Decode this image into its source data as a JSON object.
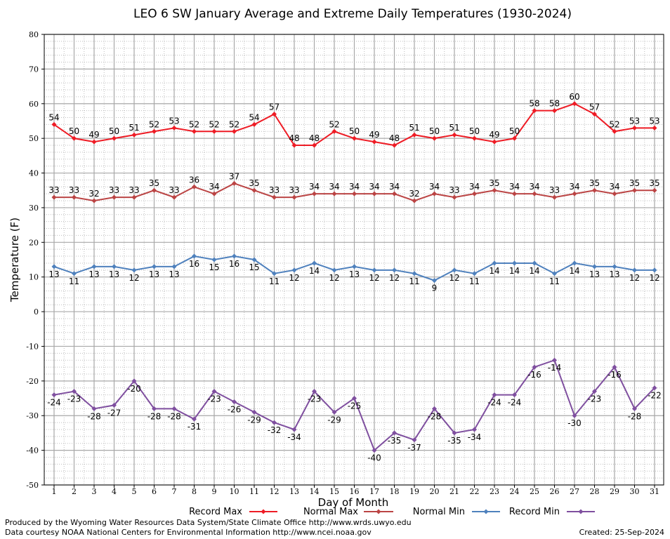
{
  "chart_data": {
    "type": "line",
    "title": "LEO 6 SW January Average and Extreme Daily Temperatures (1930-2024)",
    "xlabel": "Day of Month",
    "ylabel": "Temperature (F)",
    "ylim": [
      -50,
      80
    ],
    "yticks": [
      "80",
      "70",
      "60",
      "50",
      "40",
      "30",
      "20",
      "10",
      "0",
      "-10",
      "-20",
      "-30",
      "-40",
      "-50"
    ],
    "x": [
      "1",
      "2",
      "3",
      "4",
      "5",
      "6",
      "7",
      "8",
      "9",
      "10",
      "11",
      "12",
      "13",
      "14",
      "15",
      "16",
      "17",
      "18",
      "19",
      "20",
      "21",
      "22",
      "23",
      "24",
      "25",
      "26",
      "27",
      "28",
      "29",
      "30",
      "31"
    ],
    "grid": true,
    "legend_position": "bottom",
    "series": [
      {
        "name": "Record Max",
        "color": "#ee1c25",
        "label_position": "above",
        "values": [
          54,
          50,
          49,
          50,
          51,
          52,
          53,
          52,
          52,
          52,
          54,
          57,
          48,
          48,
          52,
          50,
          49,
          48,
          51,
          50,
          51,
          50,
          49,
          50,
          58,
          58,
          60,
          57,
          52,
          53,
          53
        ]
      },
      {
        "name": "Normal Max",
        "color": "#bb4444",
        "label_position": "above",
        "values": [
          33,
          33,
          32,
          33,
          33,
          35,
          33,
          36,
          34,
          37,
          35,
          33,
          33,
          34,
          34,
          34,
          34,
          34,
          32,
          34,
          33,
          34,
          35,
          34,
          34,
          33,
          34,
          35,
          34,
          35,
          35
        ]
      },
      {
        "name": "Normal Min",
        "color": "#4f81bd",
        "label_position": "below",
        "values": [
          13,
          11,
          13,
          13,
          12,
          13,
          13,
          16,
          15,
          16,
          15,
          11,
          12,
          14,
          12,
          13,
          12,
          12,
          11,
          9,
          12,
          11,
          14,
          14,
          14,
          11,
          14,
          13,
          13,
          12,
          12
        ]
      },
      {
        "name": "Record Min",
        "color": "#7f4f9f",
        "label_position": "below",
        "values": [
          -24,
          -23,
          -28,
          -27,
          -20,
          -28,
          -28,
          -31,
          -23,
          -26,
          -29,
          -32,
          -34,
          -23,
          -29,
          -25,
          -40,
          -35,
          -37,
          -28,
          -35,
          -34,
          -24,
          -24,
          -16,
          -14,
          -30,
          -23,
          -16,
          -28,
          -22
        ]
      }
    ]
  },
  "footer": {
    "left_line1": "Produced by the Wyoming Water Resources Data System/State Climate Office http://www.wrds.uwyo.edu",
    "left_line2": "Data courtesy NOAA National Centers for Environmental Information http://www.ncei.noaa.gov",
    "created": "Created:  25-Sep-2024"
  }
}
